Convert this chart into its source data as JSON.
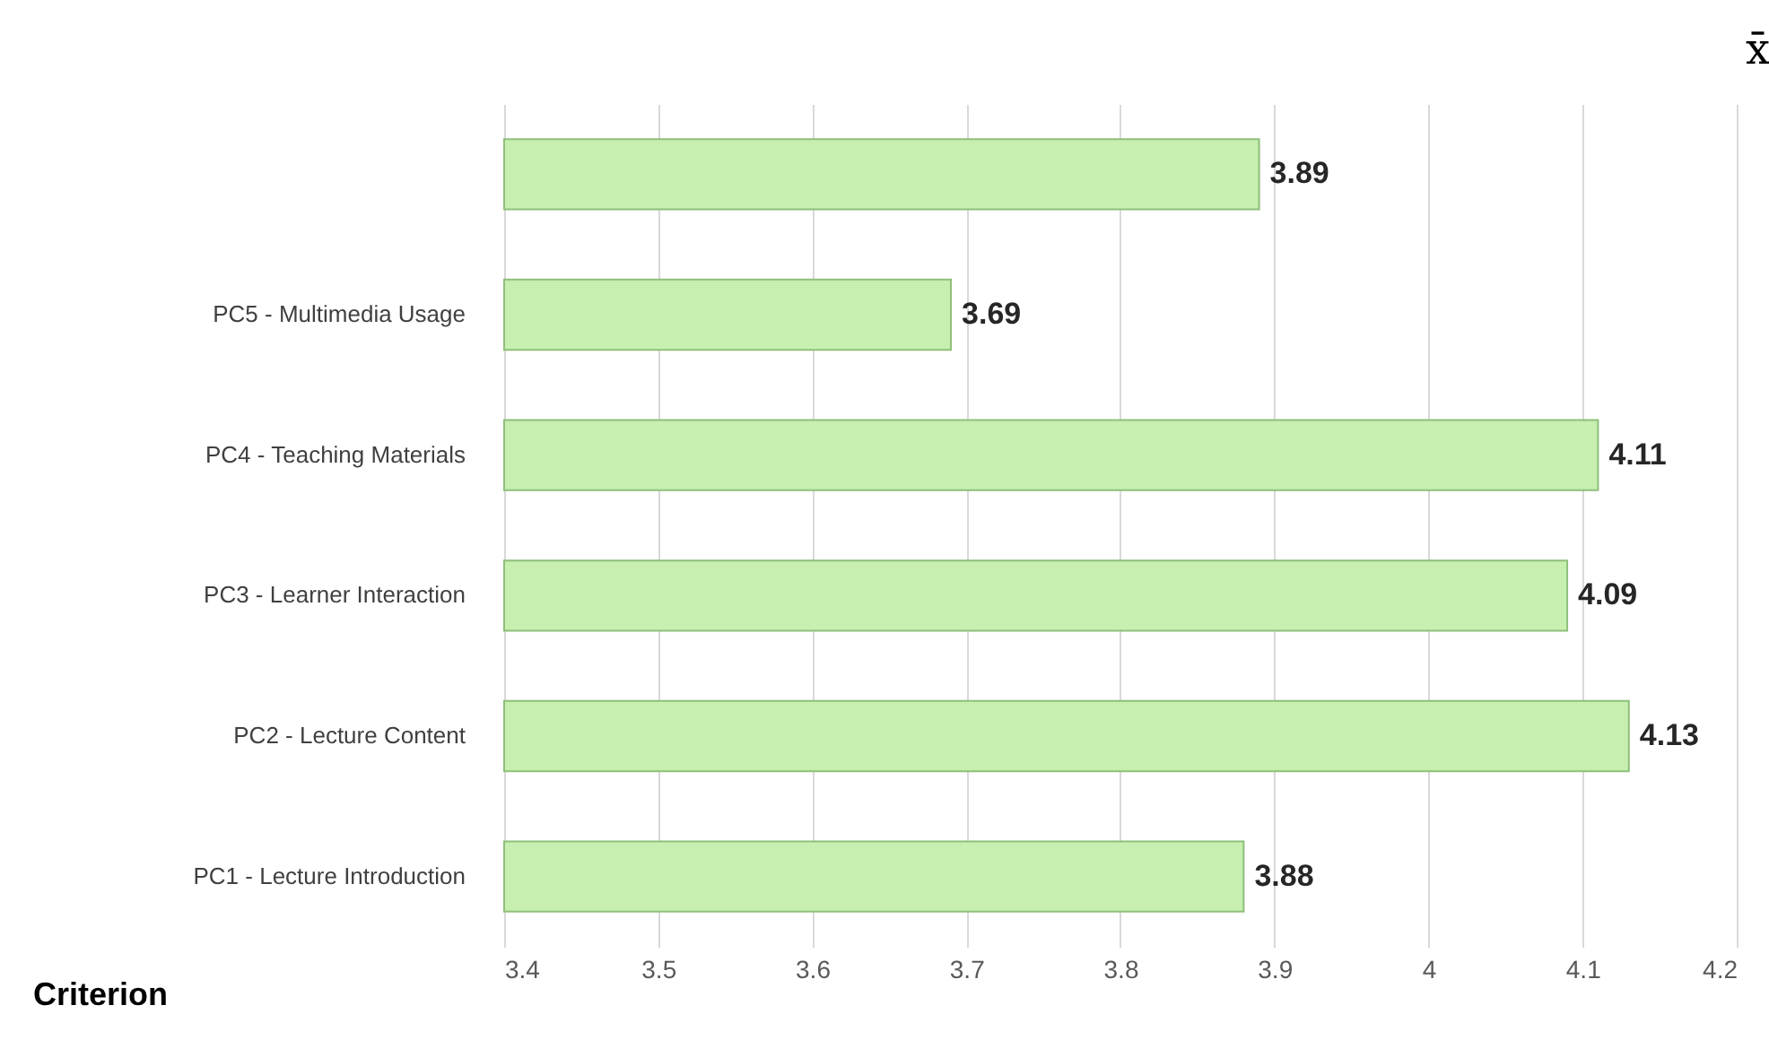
{
  "chart_data": {
    "type": "bar",
    "orientation": "horizontal",
    "xlabel": "x̄",
    "ylabel": "Criterion",
    "categories": [
      null,
      "PC5 - Multimedia Usage",
      "PC4 - Teaching Materials",
      "PC3 - Learner Interaction",
      "PC2 - Lecture Content",
      "PC1 - Lecture Introduction"
    ],
    "values": [
      3.89,
      3.69,
      4.11,
      4.09,
      4.13,
      3.88
    ],
    "color": "#c6efb0",
    "xlim": [
      3.4,
      4.2
    ],
    "xticks": [
      3.4,
      3.5,
      3.6,
      3.7,
      3.8,
      3.9,
      4,
      4.1,
      4.2
    ],
    "grid": "x",
    "data_labels": true
  }
}
